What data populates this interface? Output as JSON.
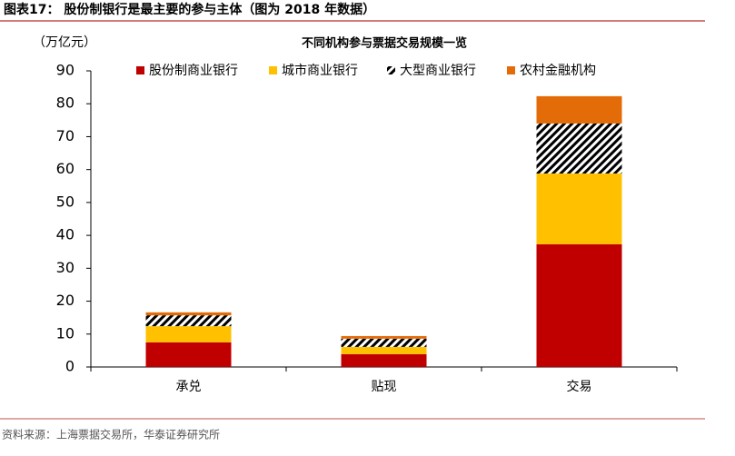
{
  "chart_data": {
    "type": "stacked-bar",
    "figure_title": "图表17： 股份制银行是最主要的参与主体（图为 2018 年数据）",
    "title": "不同机构参与票据交易规模一览",
    "y_label": "（万亿元）",
    "source": "资料来源：上海票据交易所，华泰证券研究所",
    "categories": [
      "承兑",
      "贴现",
      "交易"
    ],
    "series": [
      {
        "name": "股份制商业银行",
        "color": "#c00000",
        "values": [
          7.5,
          3.9,
          37.3
        ]
      },
      {
        "name": "城市商业银行",
        "color": "#ffc000",
        "values": [
          4.9,
          2.2,
          21.5
        ]
      },
      {
        "name": "大型商业银行",
        "color": "#000000",
        "hatch": true,
        "values": [
          3.3,
          2.5,
          15.2
        ]
      },
      {
        "name": "农村金融机构",
        "color": "#e36c09",
        "values": [
          0.9,
          0.8,
          8.3
        ]
      }
    ],
    "ylim": [
      0,
      90
    ],
    "yticks": [
      0,
      10,
      20,
      30,
      40,
      50,
      60,
      70,
      80,
      90
    ],
    "grid": false
  }
}
